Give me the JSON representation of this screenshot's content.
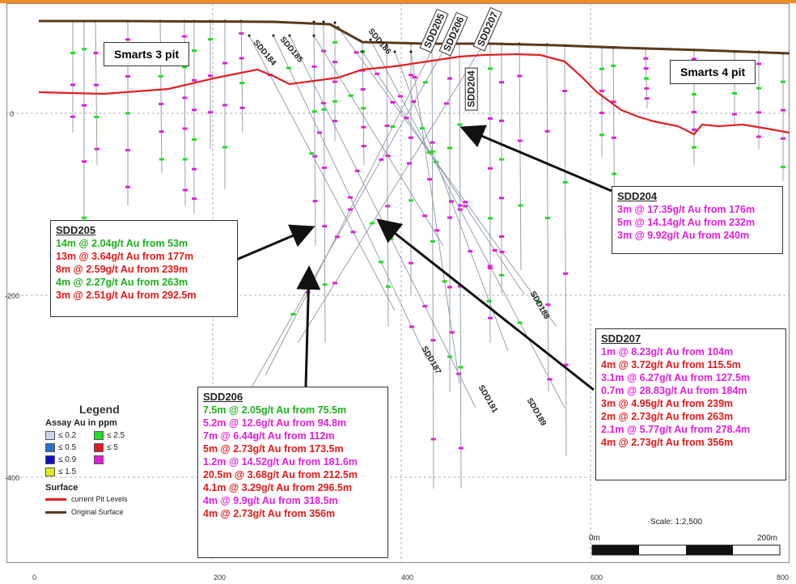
{
  "colors": {
    "pit_line": "#e02020",
    "surface_line": "#5a3a1a",
    "green": "#1db01d",
    "red": "#e01a1a",
    "magenta": "#e020d8",
    "accent_border": "#f28c28"
  },
  "pits": {
    "smarts3": "Smarts 3 pit",
    "smarts4": "Smarts 4 pit"
  },
  "axes": {
    "x_ticks": [
      "0",
      "200",
      "400",
      "600",
      "800"
    ],
    "y_ticks": [
      "0",
      "-200",
      "-400"
    ]
  },
  "hole_labels": {
    "sdd184": "SDD184",
    "sdd185": "SDD185",
    "sdd186": "SDD186",
    "sdd205": "SDD205",
    "sdd206": "SDD206",
    "sdd207": "SDD207",
    "sdd204": "SDD204",
    "sdd188": "SDD188",
    "sdd187": "SDD187",
    "sdd191": "SDD191",
    "sdd189": "SDD189"
  },
  "boxes": {
    "sdd204": {
      "title": "SDD204",
      "lines": [
        {
          "text": "3m @ 17.35g/t Au from 176m",
          "color": "magenta"
        },
        {
          "text": "5m @ 14.14g/t Au from 232m",
          "color": "magenta"
        },
        {
          "text": "3m @ 9.92g/t Au from 240m",
          "color": "magenta"
        }
      ]
    },
    "sdd205": {
      "title": "SDD205",
      "lines": [
        {
          "text": "14m @ 2.04g/t Au from 53m",
          "color": "green"
        },
        {
          "text": "13m @ 3.64g/t Au from 177m",
          "color": "red"
        },
        {
          "text": "8m @ 2.59g/t Au from 239m",
          "color": "red"
        },
        {
          "text": "4m @ 2.27g/t Au from 263m",
          "color": "green"
        },
        {
          "text": "3m @ 2.51g/t Au from 292.5m",
          "color": "red"
        }
      ]
    },
    "sdd206": {
      "title": "SDD206",
      "lines": [
        {
          "text": "7.5m @ 2.05g/t Au from 75.5m",
          "color": "green"
        },
        {
          "text": "5.2m @ 12.6g/t Au from 94.8m",
          "color": "magenta"
        },
        {
          "text": "7m @ 6.44g/t Au from 112m",
          "color": "magenta"
        },
        {
          "text": "5m @ 2.73g/t Au from 173.5m",
          "color": "red"
        },
        {
          "text": "1.2m @ 14.52g/t Au from 181.6m",
          "color": "magenta"
        },
        {
          "text": "20.5m @ 3.68g/t Au from 212.5m",
          "color": "red"
        },
        {
          "text": "4.1m @ 3.29g/t Au from 296.5m",
          "color": "red"
        },
        {
          "text": "4m @ 9.9g/t Au from 318.5m",
          "color": "magenta"
        },
        {
          "text": "4m @ 2.73g/t Au from 356m",
          "color": "red"
        }
      ]
    },
    "sdd207": {
      "title": "SDD207",
      "lines": [
        {
          "text": "1m @ 8.23g/t Au from 104m",
          "color": "magenta"
        },
        {
          "text": "4m @ 3.72g/t Au from 115.5m",
          "color": "red"
        },
        {
          "text": "3.1m @ 6.27g/t Au from 127.5m",
          "color": "magenta"
        },
        {
          "text": "0.7m @ 28.83g/t Au from 184m",
          "color": "magenta"
        },
        {
          "text": "3m @ 4.95g/t Au from 239m",
          "color": "red"
        },
        {
          "text": "2m @ 2.73g/t Au from 263m",
          "color": "red"
        },
        {
          "text": "2.1m @ 5.77g/t Au from 278.4m",
          "color": "magenta"
        },
        {
          "text": "4m @ 2.73g/t Au from 356m",
          "color": "red"
        }
      ]
    }
  },
  "legend": {
    "title": "Legend",
    "assay_title": "Assay Au in ppm",
    "items": [
      {
        "label": "≤ 0.2",
        "color": "#c8d8e8"
      },
      {
        "label": "≤ 2.5",
        "color": "#22dd22"
      },
      {
        "label": "≤ 0.5",
        "color": "#2a6fd6"
      },
      {
        "label": "≤ 5",
        "color": "#e01a1a"
      },
      {
        "label": "≤ 0.9",
        "color": "#1010c0"
      },
      {
        "label": "",
        "color": "#e020d8"
      },
      {
        "label": "≤ 1.5",
        "color": "#e8e820"
      }
    ],
    "surface_title": "Surface",
    "surface_items": [
      {
        "label": "current Pit Levels",
        "color": "#e02020"
      },
      {
        "label": "Original Surface",
        "color": "#5a3a1a"
      }
    ]
  },
  "scale": {
    "label": "Scale: 1:2,500",
    "start": "0m",
    "end": "200m"
  }
}
